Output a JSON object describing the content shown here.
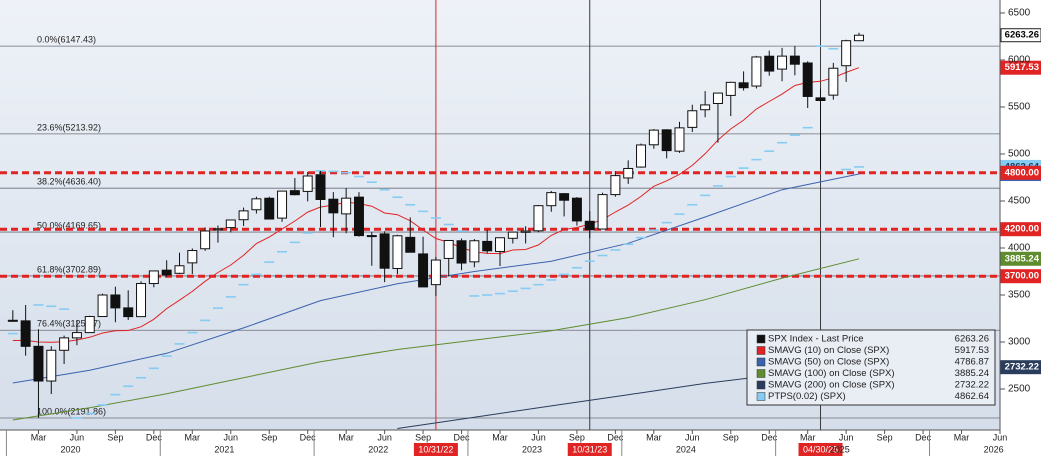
{
  "chart_data": {
    "type": "candlestick",
    "name": "SPX Index - Last Price",
    "x": [
      "2020-01",
      "2020-02",
      "2020-03",
      "2020-04",
      "2020-05",
      "2020-06",
      "2020-07",
      "2020-08",
      "2020-09",
      "2020-10",
      "2020-11",
      "2020-12",
      "2021-01",
      "2021-02",
      "2021-03",
      "2021-04",
      "2021-05",
      "2021-06",
      "2021-07",
      "2021-08",
      "2021-09",
      "2021-10",
      "2021-11",
      "2021-12",
      "2022-01",
      "2022-02",
      "2022-03",
      "2022-04",
      "2022-05",
      "2022-06",
      "2022-07",
      "2022-08",
      "2022-09",
      "2022-10",
      "2022-11",
      "2022-12",
      "2023-01",
      "2023-02",
      "2023-03",
      "2023-04",
      "2023-05",
      "2023-06",
      "2023-07",
      "2023-08",
      "2023-09",
      "2023-10",
      "2023-11",
      "2023-12",
      "2024-01",
      "2024-02",
      "2024-03",
      "2024-04",
      "2024-05",
      "2024-06",
      "2024-07",
      "2024-08",
      "2024-09",
      "2024-10",
      "2024-11",
      "2024-12",
      "2025-01",
      "2025-02",
      "2025-03",
      "2025-04",
      "2025-05",
      "2025-06",
      "2025-07"
    ],
    "open": [
      3231,
      3225,
      2954,
      2585,
      2912,
      3044,
      3100,
      3271,
      3500,
      3363,
      3270,
      3622,
      3764,
      3731,
      3842,
      3992,
      4192,
      4217,
      4301,
      4407,
      4529,
      4318,
      4610,
      4602,
      4779,
      4519,
      4363,
      4541,
      4130,
      4150,
      3782,
      4113,
      3937,
      3610,
      3889,
      4077,
      3853,
      4070,
      3963,
      4103,
      4167,
      4183,
      4450,
      4578,
      4530,
      4284,
      4202,
      4568,
      4745,
      4861,
      5098,
      5257,
      5030,
      5283,
      5471,
      5537,
      5623,
      5757,
      5723,
      6040,
      5903,
      6041,
      5968,
      5597,
      5626,
      5939,
      6205
    ],
    "high": [
      3338,
      3394,
      3136,
      2955,
      3068,
      3233,
      3280,
      3514,
      3588,
      3550,
      3646,
      3760,
      3870,
      3950,
      3995,
      4219,
      4239,
      4302,
      4430,
      4546,
      4546,
      4608,
      4744,
      4809,
      4819,
      4595,
      4637,
      4594,
      4170,
      4178,
      4140,
      4325,
      4120,
      3906,
      4080,
      4101,
      4095,
      4195,
      4110,
      4171,
      4232,
      4458,
      4607,
      4584,
      4542,
      4393,
      4588,
      4818,
      4932,
      5111,
      5265,
      5263,
      5342,
      5524,
      5669,
      5651,
      5768,
      5879,
      6044,
      6100,
      6129,
      6147.43,
      5986,
      5696,
      5969,
      6215,
      6290
    ],
    "low": [
      3215,
      2855,
      2191.86,
      2447,
      2766,
      2966,
      3115,
      3284,
      3210,
      3234,
      3280,
      3582,
      3694,
      3723,
      3723,
      3970,
      4057,
      4165,
      4234,
      4367,
      4305,
      4279,
      4560,
      4496,
      4223,
      4115,
      4157,
      4121,
      3811,
      3637,
      3722,
      3954,
      3585,
      3491,
      3698,
      3764,
      3795,
      3943,
      3808,
      4048,
      4048,
      4167,
      4385,
      4336,
      4238,
      4104,
      4202,
      4546,
      4682,
      4854,
      5056,
      4954,
      5012,
      5234,
      5391,
      5120,
      5403,
      5675,
      5697,
      5833,
      5774,
      5837,
      5489,
      4835,
      5578,
      5767,
      6201
    ],
    "close": [
      3225,
      2954,
      2585,
      2912,
      3044,
      3100,
      3271,
      3500,
      3363,
      3270,
      3622,
      3756,
      3714,
      3811,
      3973,
      4181,
      4204,
      4298,
      4395,
      4523,
      4308,
      4605,
      4567,
      4766,
      4516,
      4374,
      4530,
      4132,
      4132,
      3785,
      4130,
      3955,
      3586,
      3872,
      4080,
      3840,
      4077,
      3970,
      4109,
      4169,
      4180,
      4450,
      4589,
      4508,
      4288,
      4194,
      4568,
      4770,
      4846,
      5096,
      5254,
      5036,
      5278,
      5460,
      5522,
      5648,
      5762,
      5705,
      6032,
      5882,
      6041,
      5955,
      5612,
      5569,
      5912,
      6205,
      6263.26
    ],
    "series": [
      {
        "name": "SMAVG (10)  on Close (SPX)",
        "color": "#e02424",
        "style": "line",
        "values": [
          3016,
          3017,
          3000,
          2997,
          3003,
          3021,
          3050,
          3096,
          3119,
          3122,
          3162,
          3242,
          3355,
          3445,
          3538,
          3646,
          3739,
          3819,
          3922,
          4048,
          4116,
          4201,
          4287,
          4382,
          4436,
          4456,
          4488,
          4472,
          4445,
          4372,
          4354,
          4289,
          4191,
          4101,
          4058,
          4004,
          3959,
          3943,
          3940,
          3979,
          3984,
          4033,
          4134,
          4197,
          4218,
          4253,
          4303,
          4383,
          4456,
          4549,
          4656,
          4715,
          4784,
          4879,
          5002,
          5148,
          5267,
          5361,
          5479,
          5558,
          5637,
          5729,
          5762,
          5773,
          5812,
          5868,
          5917.53
        ]
      },
      {
        "name": "SMAVG (50)  on Close (SPX)",
        "color": "#3b62ad",
        "style": "line",
        "x": [
          "2020-01",
          "2020-07",
          "2021-01",
          "2021-07",
          "2022-01",
          "2022-07",
          "2023-01",
          "2023-07",
          "2024-01",
          "2024-07",
          "2025-01",
          "2025-07"
        ],
        "values": [
          2564,
          2700,
          2880,
          3150,
          3440,
          3620,
          3750,
          3860,
          4050,
          4330,
          4620,
          4786.87
        ]
      },
      {
        "name": "SMAVG (100)  on Close (SPX)",
        "color": "#5f8c2f",
        "style": "line",
        "x": [
          "2020-01",
          "2020-07",
          "2021-01",
          "2021-07",
          "2022-01",
          "2022-07",
          "2023-01",
          "2023-07",
          "2024-01",
          "2024-07",
          "2025-01",
          "2025-07"
        ],
        "values": [
          2170,
          2300,
          2450,
          2620,
          2790,
          2920,
          3020,
          3120,
          3260,
          3450,
          3680,
          3885.24
        ]
      },
      {
        "name": "SMAVG (200)  on Close (SPX)",
        "color": "#2a3d5c",
        "style": "line",
        "x": [
          "2022-07",
          "2023-01",
          "2023-07",
          "2024-01",
          "2024-07",
          "2025-01",
          "2025-07"
        ],
        "values": [
          2080,
          2200,
          2320,
          2440,
          2560,
          2660,
          2732.22
        ]
      },
      {
        "name": "PTPS(0.02) (SPX)",
        "color": "#86cbf2",
        "style": "dash",
        "values": [
          3090,
          3120,
          3394,
          3380,
          3350,
          2192,
          2240,
          2330,
          2440,
          2530,
          2620,
          2720,
          2850,
          2980,
          3100,
          3230,
          3360,
          3480,
          3610,
          3720,
          3850,
          3960,
          4060,
          4160,
          4820,
          4815,
          4800,
          4760,
          4700,
          4620,
          4540,
          4460,
          4390,
          4320,
          4250,
          4180,
          3490,
          3500,
          3515,
          3540,
          3570,
          3610,
          3660,
          3720,
          3790,
          3860,
          3920,
          3980,
          4040,
          4110,
          4190,
          4270,
          4360,
          4460,
          4560,
          4660,
          4760,
          4850,
          4940,
          5030,
          5120,
          5200,
          5280,
          6147,
          6120,
          4835,
          4862.64
        ]
      }
    ],
    "fib_levels": [
      {
        "value": 6147.43,
        "label": "0.0%(6147.43)"
      },
      {
        "value": 5213.92,
        "label": "23.6%(5213.92)"
      },
      {
        "value": 4636.4,
        "label": "38.2%(4636.40)"
      },
      {
        "value": 4169.65,
        "label": "50.0%(4169.65)"
      },
      {
        "value": 3702.89,
        "label": "61.8%(3702.89)"
      },
      {
        "value": 3125.37,
        "label": "76.4%(3125.37)"
      },
      {
        "value": 2191.86,
        "label": "100.0%(2191.86)"
      }
    ],
    "hlines": [
      {
        "value": 4800,
        "label": "4800.00"
      },
      {
        "value": 4200,
        "label": "4200.00"
      },
      {
        "value": 3700,
        "label": "3700.00"
      }
    ],
    "hline_color": "#e02424",
    "vlines": [
      {
        "value": "2022-10",
        "label": "10/31/22",
        "color": "#e02424"
      },
      {
        "value": "2023-10",
        "label": "10/31/23",
        "color": "#3a3a3a"
      },
      {
        "value": "2025-04",
        "label": "04/30/25",
        "color": "#3a3a3a"
      }
    ],
    "xlim": [
      "2019-12",
      "2026-06"
    ],
    "ylim": [
      2064,
      6638
    ],
    "yticks": [
      2500,
      3000,
      3500,
      4000,
      4500,
      5000,
      5500,
      6000,
      6500
    ],
    "xticks": [
      {
        "value": "2020-03",
        "label": "Mar"
      },
      {
        "value": "2020-06",
        "label": "Jun"
      },
      {
        "value": "2020-09",
        "label": "Sep"
      },
      {
        "value": "2020-12",
        "label": "Dec"
      },
      {
        "value": "2021-03",
        "label": "Mar"
      },
      {
        "value": "2021-06",
        "label": "Jun"
      },
      {
        "value": "2021-09",
        "label": "Sep"
      },
      {
        "value": "2021-12",
        "label": "Dec"
      },
      {
        "value": "2022-03",
        "label": "Mar"
      },
      {
        "value": "2022-06",
        "label": "Jun"
      },
      {
        "value": "2022-09",
        "label": "Sep"
      },
      {
        "value": "2022-12",
        "label": "Dec"
      },
      {
        "value": "2023-03",
        "label": "Mar"
      },
      {
        "value": "2023-06",
        "label": "Jun"
      },
      {
        "value": "2023-09",
        "label": "Sep"
      },
      {
        "value": "2023-12",
        "label": "Dec"
      },
      {
        "value": "2024-03",
        "label": "Mar"
      },
      {
        "value": "2024-06",
        "label": "Jun"
      },
      {
        "value": "2024-09",
        "label": "Sep"
      },
      {
        "value": "2024-12",
        "label": "Dec"
      },
      {
        "value": "2025-03",
        "label": "Mar"
      },
      {
        "value": "2025-06",
        "label": "Jun"
      },
      {
        "value": "2025-09",
        "label": "Sep"
      },
      {
        "value": "2025-12",
        "label": "Dec"
      },
      {
        "value": "2026-03",
        "label": "Mar"
      },
      {
        "value": "2026-06",
        "label": "Jun"
      }
    ],
    "years": [
      2020,
      2021,
      2022,
      2023,
      2024,
      2025,
      2026
    ],
    "legend": "bottom-right"
  }
}
